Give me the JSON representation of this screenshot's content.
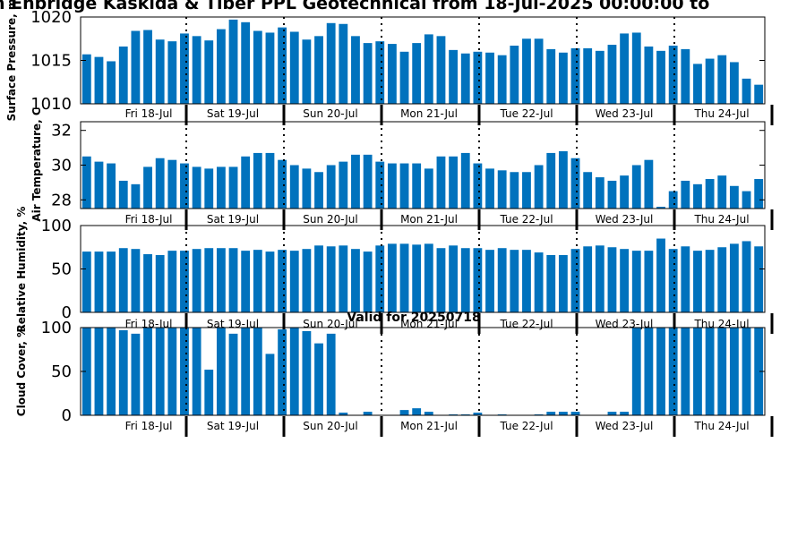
{
  "page": {
    "title": "n Enbridge  Kaskida & Tiber PPL Geotechnical from 18-Jul-2025 00:00:00 to",
    "valid_label": "Valid for 20250718"
  },
  "colors": {
    "bar": "#0072bd",
    "axis": "#000000",
    "divider": "#000000"
  },
  "chart_data": [
    {
      "type": "bar",
      "ylabel": "Surface Pressure, m",
      "ylim": [
        1010,
        1020
      ],
      "yticks": [
        1010,
        1015,
        1020
      ],
      "x_tick_labels": [
        "Fri 18-Jul",
        "Sat 19-Jul",
        "Sun 20-Jul",
        "Mon 21-Jul",
        "Tue 22-Jul",
        "Wed 23-Jul",
        "Thu 24-Jul"
      ],
      "values": [
        1015.7,
        1015.4,
        1014.9,
        1016.6,
        1018.4,
        1018.5,
        1017.4,
        1017.2,
        1018.1,
        1017.8,
        1017.3,
        1018.6,
        1019.7,
        1019.4,
        1018.4,
        1018.2,
        1018.8,
        1018.3,
        1017.4,
        1017.8,
        1019.3,
        1019.2,
        1017.8,
        1017.0,
        1017.2,
        1016.9,
        1016.0,
        1017.0,
        1018.0,
        1017.8,
        1016.2,
        1015.8,
        1016.0,
        1015.9,
        1015.6,
        1016.7,
        1017.5,
        1017.5,
        1016.3,
        1015.9,
        1016.4,
        1016.4,
        1016.1,
        1016.8,
        1018.1,
        1018.2,
        1016.6,
        1016.1,
        1016.7,
        1016.3,
        1014.6,
        1015.2,
        1015.6,
        1014.8,
        1012.9,
        1012.2
      ]
    },
    {
      "type": "bar",
      "ylabel": "Air Temperature, C",
      "ylim": [
        27.5,
        32.5
      ],
      "yticks": [
        28,
        30,
        32
      ],
      "x_tick_labels": [
        "Fri 18-Jul",
        "Sat 19-Jul",
        "Sun 20-Jul",
        "Mon 21-Jul",
        "Tue 22-Jul",
        "Wed 23-Jul",
        "Thu 24-Jul"
      ],
      "values": [
        30.5,
        30.2,
        30.1,
        29.1,
        28.9,
        29.9,
        30.4,
        30.3,
        30.1,
        29.9,
        29.8,
        29.9,
        29.9,
        30.5,
        30.7,
        30.7,
        30.3,
        30.0,
        29.8,
        29.6,
        30.0,
        30.2,
        30.6,
        30.6,
        30.2,
        30.1,
        30.1,
        30.1,
        29.8,
        30.5,
        30.5,
        30.7,
        30.1,
        29.8,
        29.7,
        29.6,
        29.6,
        30.0,
        30.7,
        30.8,
        30.4,
        29.6,
        29.3,
        29.1,
        29.4,
        30.0,
        30.3,
        27.6,
        28.5,
        29.1,
        28.9,
        29.2,
        29.4,
        28.8,
        28.5,
        29.2
      ]
    },
    {
      "type": "bar",
      "ylabel": "Relative Humidity, %",
      "ylim": [
        0,
        100
      ],
      "yticks": [
        0,
        50,
        100
      ],
      "x_tick_labels": [
        "Fri 18-Jul",
        "Sat 19-Jul",
        "Sun 20-Jul",
        "Mon 21-Jul",
        "Tue 22-Jul",
        "Wed 23-Jul",
        "Thu 24-Jul"
      ],
      "values": [
        70,
        70,
        70,
        74,
        73,
        67,
        66,
        71,
        71,
        73,
        74,
        74,
        74,
        71,
        72,
        70,
        72,
        71,
        73,
        77,
        76,
        77,
        73,
        70,
        77,
        79,
        79,
        78,
        79,
        74,
        77,
        74,
        74,
        72,
        74,
        72,
        72,
        69,
        66,
        66,
        73,
        76,
        77,
        75,
        73,
        71,
        71,
        85,
        73,
        76,
        71,
        72,
        75,
        79,
        82,
        76
      ]
    },
    {
      "type": "bar",
      "title": "Valid for 20250718",
      "ylabel": "Cloud Cover, %",
      "ylim": [
        0,
        100
      ],
      "yticks": [
        0,
        50,
        100
      ],
      "x_tick_labels": [
        "Fri 18-Jul",
        "Sat 19-Jul",
        "Sun 20-Jul",
        "Mon 21-Jul",
        "Tue 22-Jul",
        "Wed 23-Jul",
        "Thu 24-Jul"
      ],
      "values": [
        100,
        100,
        100,
        97,
        93,
        100,
        100,
        100,
        100,
        100,
        52,
        100,
        93,
        100,
        100,
        70,
        98,
        100,
        96,
        82,
        93,
        3,
        0,
        4,
        0,
        0,
        6,
        8,
        4,
        0,
        1,
        1,
        3,
        0,
        1,
        0,
        0,
        1,
        4,
        4,
        4,
        0,
        0,
        4,
        4,
        100,
        100,
        100,
        100,
        100,
        100,
        100,
        100,
        100,
        100,
        100
      ]
    }
  ]
}
